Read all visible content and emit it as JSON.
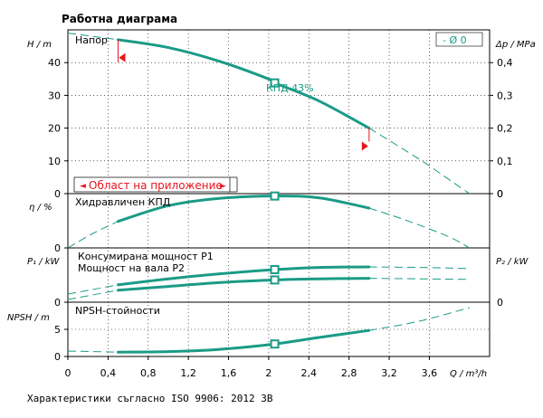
{
  "title": "Работна диаграма",
  "footer": "Характеристики съгласно ISO 9906: 2012 3B",
  "colors": {
    "curve": "#1a9b86",
    "accent_red": "#e8141c",
    "text": "#000000"
  },
  "x_axis": {
    "label": "Q / m³/h",
    "min": 0,
    "max": 4.2,
    "ticks": [
      "0",
      "0,4",
      "0,8",
      "1,2",
      "1,6",
      "2",
      "2,4",
      "2,8",
      "3,2",
      "3,6"
    ]
  },
  "chart_data": [
    {
      "type": "line",
      "panel": "head",
      "panel_label": "Напор",
      "ylabel": "H / m",
      "ylabel2": "Δp / MPa",
      "ylim": [
        0,
        50
      ],
      "yticks": [
        "0",
        "10",
        "20",
        "30",
        "40"
      ],
      "y2ticks": [
        "0",
        "0,1",
        "0,2",
        "0,3",
        "0,4"
      ],
      "legend": "-  Ø 0",
      "annotation": "КПД  43%",
      "range_label": "Област на приложение",
      "series": [
        {
          "style": "dashed",
          "x": [
            0,
            0.5
          ],
          "y": [
            49,
            47
          ]
        },
        {
          "style": "solid",
          "x": [
            0.5,
            1.0,
            1.5,
            2.0,
            2.06,
            2.5,
            3.0
          ],
          "y": [
            47,
            44.6,
            40.5,
            35,
            33.8,
            28.3,
            20
          ]
        },
        {
          "style": "dashed",
          "x": [
            3.0,
            3.5,
            3.8,
            4.0
          ],
          "y": [
            20,
            10.5,
            4.2,
            0
          ]
        }
      ],
      "marker": {
        "x": 2.06,
        "y": 33.8
      },
      "range_markers": [
        {
          "x": 0.5,
          "y": 41.5
        },
        {
          "x": 3.0,
          "y": 14.5
        }
      ]
    },
    {
      "type": "line",
      "panel": "efficiency",
      "panel_label": "Хидравличен КПД",
      "ylabel": "η / %",
      "ylim": [
        0,
        45
      ],
      "yticks": [
        "0"
      ],
      "series": [
        {
          "style": "dashed",
          "x": [
            0,
            0.25,
            0.5
          ],
          "y": [
            0,
            12,
            22
          ]
        },
        {
          "style": "solid",
          "x": [
            0.5,
            1.0,
            1.5,
            2.06,
            2.5,
            3.0
          ],
          "y": [
            22,
            35,
            41,
            43,
            41.5,
            33
          ]
        },
        {
          "style": "dashed",
          "x": [
            3.0,
            3.4,
            3.8,
            4.0
          ],
          "y": [
            33,
            22,
            9,
            0
          ]
        }
      ],
      "marker": {
        "x": 2.06,
        "y": 43
      }
    },
    {
      "type": "line",
      "panel": "power",
      "ylabel": "P₁ / kW",
      "ylabel2": "P₂ / kW",
      "ylim": [
        0,
        1
      ],
      "legend": [
        "Консумирана мощност P1",
        "Мощност на вала P2"
      ],
      "series": [
        {
          "name": "Консумирана мощност P1",
          "style": "dashed",
          "x": [
            0,
            0.5
          ],
          "y": [
            0.15,
            0.32
          ]
        },
        {
          "name": "Консумирана мощност P1",
          "style": "solid",
          "x": [
            0.5,
            1.0,
            1.5,
            2.06,
            2.5,
            3.0
          ],
          "y": [
            0.32,
            0.43,
            0.52,
            0.6,
            0.64,
            0.65
          ]
        },
        {
          "name": "Консумирана мощност P1",
          "style": "dashed",
          "x": [
            3.0,
            3.5,
            4.0
          ],
          "y": [
            0.65,
            0.64,
            0.62
          ]
        },
        {
          "name": "Мощност на вала P2",
          "style": "dashed",
          "x": [
            0,
            0.5
          ],
          "y": [
            0.05,
            0.22
          ]
        },
        {
          "name": "Мощност на вала P2",
          "style": "solid",
          "x": [
            0.5,
            1.0,
            1.5,
            2.06,
            2.5,
            3.0
          ],
          "y": [
            0.22,
            0.29,
            0.36,
            0.41,
            0.43,
            0.44
          ]
        },
        {
          "name": "Мощност на вала P2",
          "style": "dashed",
          "x": [
            3.0,
            3.5,
            4.0
          ],
          "y": [
            0.44,
            0.43,
            0.42
          ]
        }
      ],
      "markers": [
        {
          "x": 2.06,
          "y": 0.6
        },
        {
          "x": 2.06,
          "y": 0.41
        }
      ],
      "yticks_right": [
        "0"
      ],
      "yticks": [
        "0"
      ]
    },
    {
      "type": "line",
      "panel": "npsh",
      "panel_label": "NPSH-стойности",
      "ylabel": "NPSH / m",
      "ylim": [
        0,
        10
      ],
      "yticks": [
        "0",
        "5"
      ],
      "series": [
        {
          "style": "dashed",
          "x": [
            0,
            0.5
          ],
          "y": [
            1.0,
            0.8
          ]
        },
        {
          "style": "solid",
          "x": [
            0.5,
            1.0,
            1.5,
            2.06,
            2.5,
            3.0
          ],
          "y": [
            0.8,
            0.9,
            1.3,
            2.3,
            3.5,
            4.8
          ]
        },
        {
          "style": "dashed",
          "x": [
            3.0,
            3.5,
            4.0
          ],
          "y": [
            4.8,
            6.5,
            9.0
          ]
        }
      ],
      "marker": {
        "x": 2.06,
        "y": 2.3
      }
    }
  ]
}
